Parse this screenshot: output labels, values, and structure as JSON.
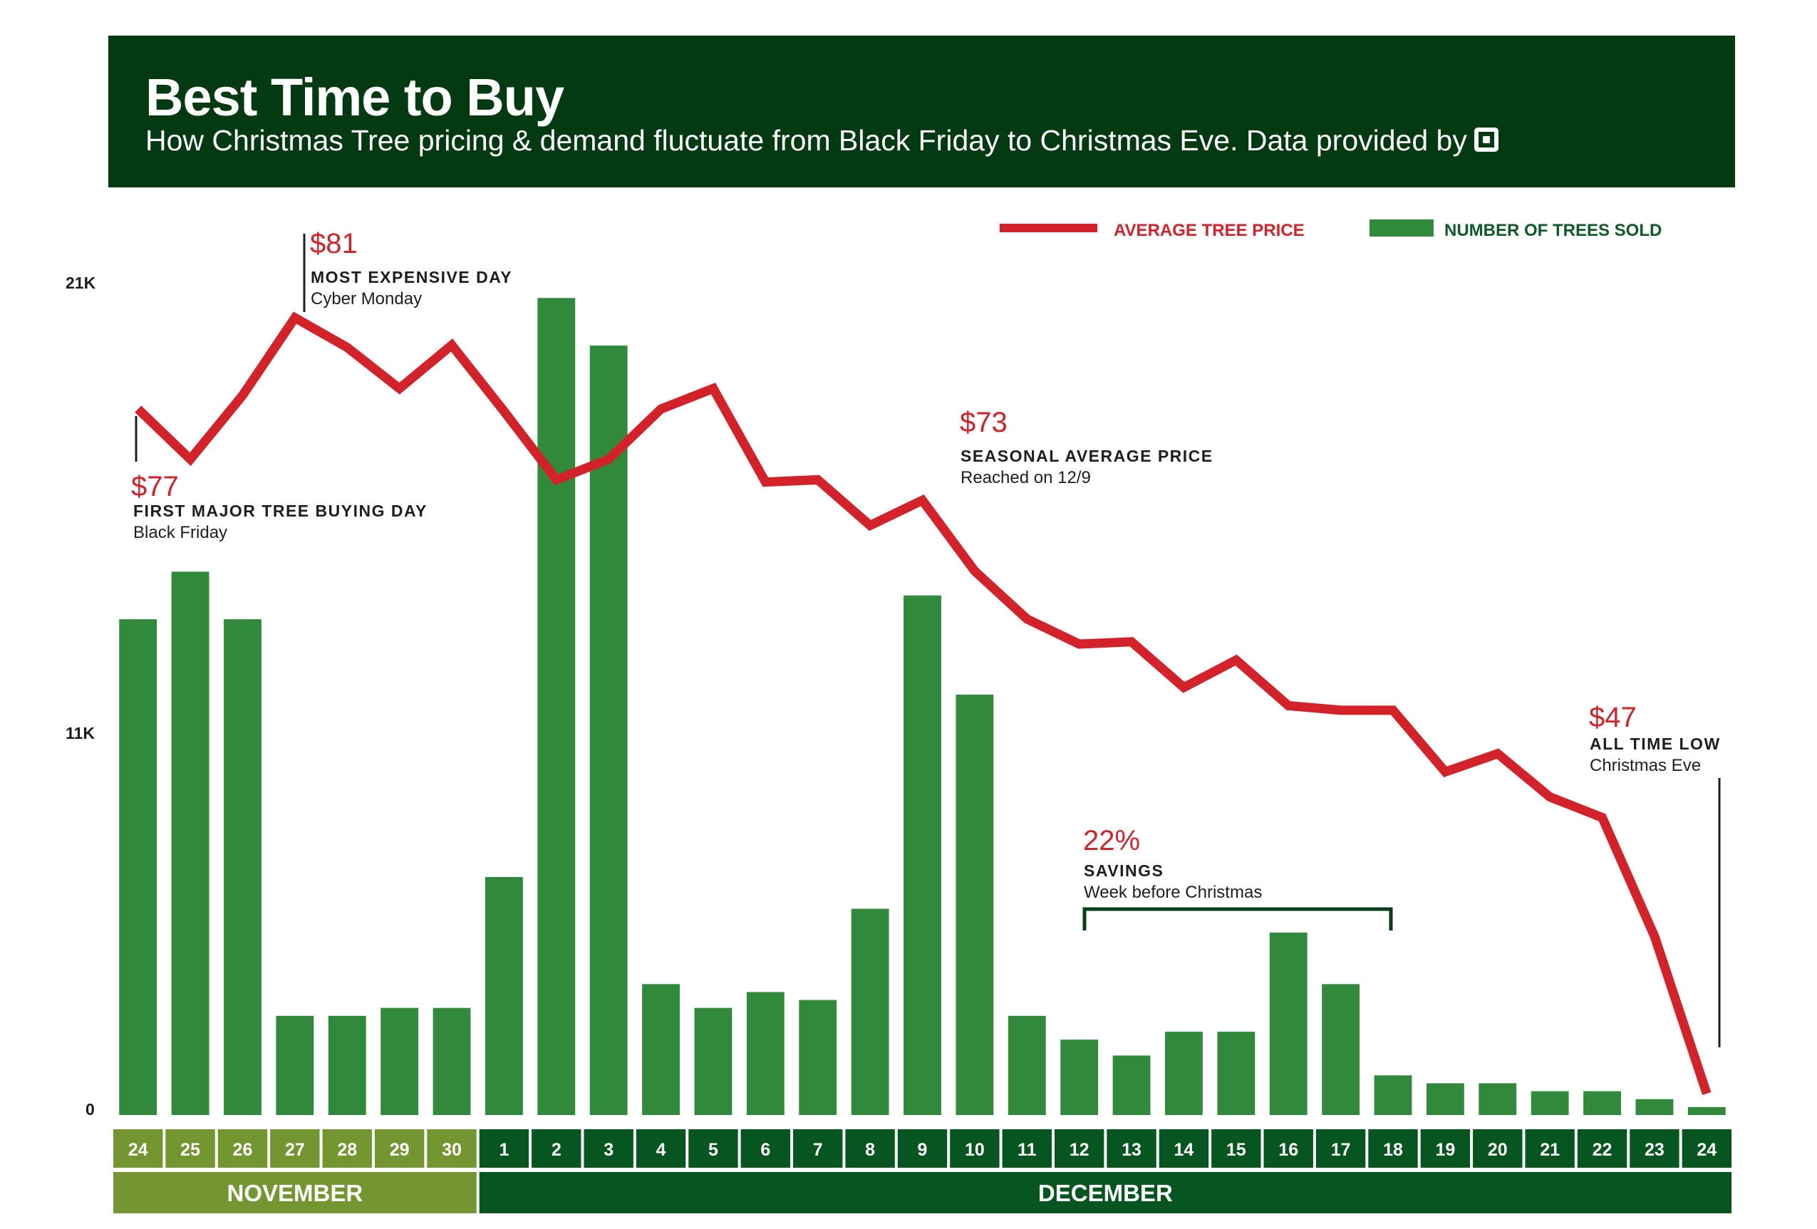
{
  "header": {
    "title": "Best Time to Buy",
    "subtitle": "How Christmas Tree pricing & demand fluctuate from Black Friday to Christmas Eve. Data provided by",
    "logo_icon": "square-logo-icon"
  },
  "colors": {
    "header_bg": "#033a12",
    "price_line": "#d3222a",
    "bars": "#318a3b",
    "november": "#739630",
    "december": "#08561f",
    "bracket": "#0a3d1a"
  },
  "chart_data": {
    "type": "bar+line",
    "title": "Best Time to Buy",
    "subtitle": "How Christmas Tree pricing & demand fluctuate from Black Friday to Christmas Eve. Data provided by",
    "categories": [
      "24",
      "25",
      "26",
      "27",
      "28",
      "29",
      "30",
      "1",
      "2",
      "3",
      "4",
      "5",
      "6",
      "7",
      "8",
      "9",
      "10",
      "11",
      "12",
      "13",
      "14",
      "15",
      "16",
      "17",
      "18",
      "19",
      "20",
      "21",
      "22",
      "23",
      "24"
    ],
    "months": [
      {
        "label": "NOVEMBER",
        "start": 0,
        "count": 7
      },
      {
        "label": "DECEMBER",
        "start": 7,
        "count": 24
      }
    ],
    "legend": [
      {
        "label": "AVERAGE TREE PRICE",
        "kind": "line"
      },
      {
        "label": "NUMBER OF TREES SOLD",
        "kind": "bar"
      }
    ],
    "legend_position": "top-right",
    "y_axis": {
      "ticks": [
        {
          "label": "21K",
          "value": 21000
        },
        {
          "label": "11K",
          "value": 11000
        },
        {
          "label": "0",
          "value": 0
        }
      ],
      "ylim": [
        0,
        21000
      ]
    },
    "price_ylim": [
      47,
      81
    ],
    "series": [
      {
        "name": "NUMBER OF TREES SOLD",
        "type": "bar",
        "values": [
          12500,
          13700,
          12500,
          2500,
          2500,
          2700,
          2700,
          6000,
          20600,
          19400,
          3300,
          2700,
          3100,
          2900,
          5200,
          13100,
          10600,
          2500,
          1900,
          1500,
          2100,
          2100,
          4600,
          3300,
          1000,
          800,
          800,
          600,
          600,
          400,
          200
        ]
      },
      {
        "name": "AVERAGE TREE PRICE",
        "type": "line",
        "values": [
          77,
          74.8,
          77.6,
          81,
          79.7,
          77.9,
          79.8,
          76.9,
          73.9,
          74.8,
          77.0,
          77.9,
          73.8,
          73.9,
          71.9,
          73,
          69.9,
          67.8,
          66.7,
          66.8,
          64.8,
          66.0,
          64.0,
          63.8,
          63.8,
          61.1,
          61.9,
          60.0,
          59.1,
          53.9,
          47
        ]
      }
    ],
    "annotations": [
      {
        "value": "$77",
        "heading": "FIRST MAJOR TREE BUYING DAY",
        "sub": "Black Friday"
      },
      {
        "value": "$81",
        "heading": "MOST EXPENSIVE DAY",
        "sub": "Cyber Monday"
      },
      {
        "value": "$73",
        "heading": "SEASONAL AVERAGE PRICE",
        "sub": "Reached on 12/9"
      },
      {
        "value": "22%",
        "heading": "SAVINGS",
        "sub": "Week before Christmas"
      },
      {
        "value": "$47",
        "heading": "ALL TIME LOW",
        "sub": "Christmas Eve"
      }
    ]
  }
}
